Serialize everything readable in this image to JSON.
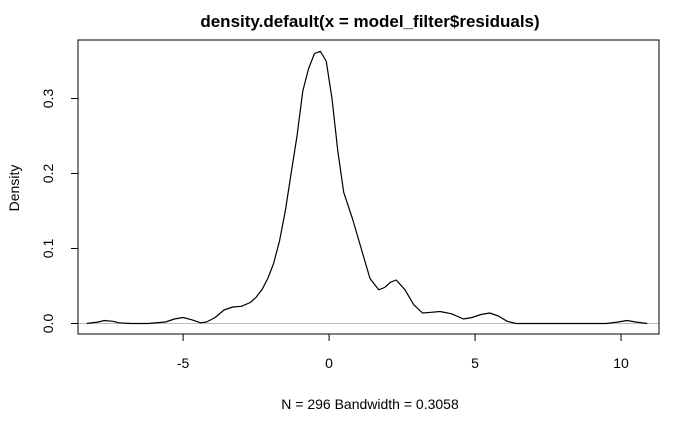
{
  "chart_data": {
    "type": "line",
    "title": "density.default(x = model_filter$residuals)",
    "xlabel": "N = 296   Bandwidth = 0.3058",
    "ylabel": "Density",
    "xlim": [
      -8.6,
      11.3
    ],
    "ylim": [
      -0.014,
      0.378
    ],
    "x_ticks": [
      -5,
      0,
      5,
      10
    ],
    "x_tick_labels": [
      "-5",
      "0",
      "5",
      "10"
    ],
    "y_ticks": [
      0.0,
      0.1,
      0.2,
      0.3
    ],
    "y_tick_labels": [
      "0.0",
      "0.1",
      "0.2",
      "0.3"
    ],
    "baseline": 0,
    "grid": false,
    "colors": {
      "line": "#000000",
      "baseline": "#bebebe",
      "frame": "#000000"
    },
    "series": [
      {
        "x": [
          -8.3,
          -7.9,
          -7.7,
          -7.4,
          -7.2,
          -6.8,
          -6.2,
          -5.6,
          -5.3,
          -5.0,
          -4.7,
          -4.4,
          -4.2,
          -3.9,
          -3.6,
          -3.3,
          -3.0,
          -2.7,
          -2.5,
          -2.3,
          -2.1,
          -1.9,
          -1.7,
          -1.5,
          -1.3,
          -1.1,
          -0.9,
          -0.7,
          -0.5,
          -0.3,
          -0.1,
          0.1,
          0.3,
          0.5,
          0.8,
          1.1,
          1.4,
          1.7,
          1.9,
          2.1,
          2.3,
          2.6,
          2.9,
          3.2,
          3.5,
          3.8,
          4.2,
          4.6,
          4.9,
          5.2,
          5.5,
          5.8,
          6.1,
          6.4,
          7.0,
          8.0,
          9.0,
          9.5,
          9.9,
          10.2,
          10.5,
          10.9
        ],
        "y": [
          0.0,
          0.002,
          0.004,
          0.003,
          0.001,
          0.0,
          0.0,
          0.002,
          0.006,
          0.008,
          0.005,
          0.001,
          0.002,
          0.008,
          0.018,
          0.022,
          0.023,
          0.028,
          0.035,
          0.045,
          0.06,
          0.08,
          0.11,
          0.15,
          0.2,
          0.25,
          0.31,
          0.34,
          0.36,
          0.363,
          0.35,
          0.3,
          0.23,
          0.175,
          0.14,
          0.1,
          0.06,
          0.045,
          0.048,
          0.055,
          0.058,
          0.045,
          0.025,
          0.014,
          0.015,
          0.016,
          0.013,
          0.006,
          0.008,
          0.012,
          0.014,
          0.01,
          0.003,
          0.0,
          0.0,
          0.0,
          0.0,
          0.0,
          0.002,
          0.004,
          0.002,
          0.0
        ]
      }
    ]
  }
}
